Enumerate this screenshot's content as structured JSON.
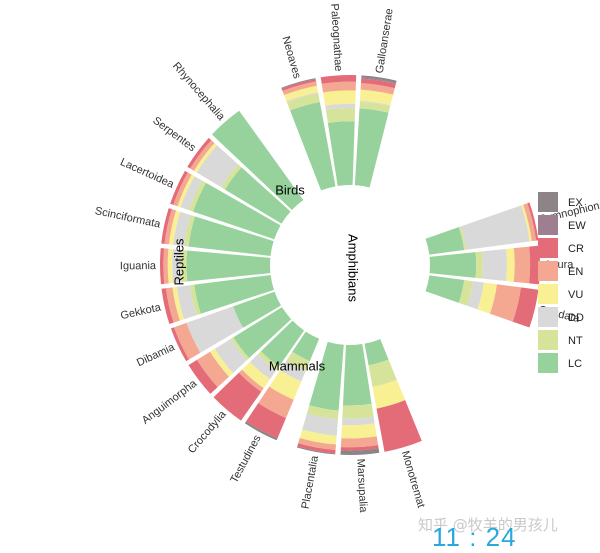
{
  "chart_data": {
    "type": "bar",
    "layout": "circular-stacked-percent",
    "categories_order": [
      "LC",
      "NT",
      "DD",
      "VU",
      "EN",
      "CR",
      "EW",
      "EX"
    ],
    "colors": {
      "EX": "#8c8486",
      "EW": "#9e7f92",
      "CR": "#e46b78",
      "EN": "#f4a791",
      "VU": "#f8f092",
      "DD": "#d9d9d9",
      "NT": "#d6e49b",
      "LC": "#97d29c"
    },
    "legend": {
      "position": "right",
      "entries": [
        "EX",
        "EW",
        "CR",
        "EN",
        "VU",
        "DD",
        "NT",
        "LC"
      ]
    },
    "groups": [
      {
        "name": "Reptiles",
        "orders": [
          {
            "name": "Testudines",
            "values": {
              "LC": 0.22,
              "NT": 0.1,
              "DD": 0.1,
              "VU": 0.18,
              "EN": 0.18,
              "CR": 0.2,
              "EW": 0.0,
              "EX": 0.02
            }
          },
          {
            "name": "Crocodylia",
            "values": {
              "LC": 0.4,
              "NT": 0.04,
              "DD": 0.1,
              "VU": 0.1,
              "EN": 0.04,
              "CR": 0.32,
              "EW": 0.0,
              "EX": 0.0
            }
          },
          {
            "name": "Anguimorpha",
            "values": {
              "LC": 0.52,
              "NT": 0.03,
              "DD": 0.17,
              "VU": 0.05,
              "EN": 0.14,
              "CR": 0.09,
              "EW": 0.0,
              "EX": 0.0
            }
          },
          {
            "name": "Dibamia",
            "values": {
              "LC": 0.4,
              "NT": 0.0,
              "DD": 0.45,
              "VU": 0.0,
              "EN": 0.12,
              "CR": 0.03,
              "EW": 0.0,
              "EX": 0.0
            }
          },
          {
            "name": "Gekkota",
            "values": {
              "LC": 0.7,
              "NT": 0.04,
              "DD": 0.12,
              "VU": 0.04,
              "EN": 0.06,
              "CR": 0.04,
              "EW": 0.0,
              "EX": 0.0
            }
          },
          {
            "name": "Iguania",
            "values": {
              "LC": 0.76,
              "NT": 0.05,
              "DD": 0.08,
              "VU": 0.04,
              "EN": 0.04,
              "CR": 0.03,
              "EW": 0.0,
              "EX": 0.0
            }
          },
          {
            "name": "Scinciformata",
            "values": {
              "LC": 0.75,
              "NT": 0.04,
              "DD": 0.1,
              "VU": 0.04,
              "EN": 0.04,
              "CR": 0.03,
              "EW": 0.0,
              "EX": 0.0
            }
          },
          {
            "name": "Lacertoidea",
            "values": {
              "LC": 0.78,
              "NT": 0.04,
              "DD": 0.08,
              "VU": 0.03,
              "EN": 0.04,
              "CR": 0.03,
              "EW": 0.0,
              "EX": 0.0
            }
          },
          {
            "name": "Serpentes",
            "values": {
              "LC": 0.6,
              "NT": 0.04,
              "DD": 0.26,
              "VU": 0.03,
              "EN": 0.04,
              "CR": 0.03,
              "EW": 0.0,
              "EX": 0.0
            }
          },
          {
            "name": "Rhynocephalia",
            "values": {
              "LC": 1.0,
              "NT": 0.0,
              "DD": 0.0,
              "VU": 0.0,
              "EN": 0.0,
              "CR": 0.0,
              "EW": 0.0,
              "EX": 0.0
            }
          }
        ]
      },
      {
        "name": "Birds",
        "orders": [
          {
            "name": "Neoaves",
            "values": {
              "LC": 0.78,
              "NT": 0.08,
              "DD": 0.01,
              "VU": 0.06,
              "EN": 0.04,
              "CR": 0.02,
              "EW": 0.0,
              "EX": 0.01
            }
          },
          {
            "name": "Paleognathae",
            "values": {
              "LC": 0.58,
              "NT": 0.12,
              "DD": 0.04,
              "VU": 0.12,
              "EN": 0.08,
              "CR": 0.06,
              "EW": 0.0,
              "EX": 0.0
            }
          },
          {
            "name": "Galloanserae",
            "values": {
              "LC": 0.7,
              "NT": 0.06,
              "DD": 0.01,
              "VU": 0.1,
              "EN": 0.06,
              "CR": 0.04,
              "EW": 0.01,
              "EX": 0.02
            }
          }
        ]
      },
      {
        "name": "Amphibians",
        "orders": [
          {
            "name": "Gymnophiona",
            "values": {
              "LC": 0.32,
              "NT": 0.02,
              "DD": 0.58,
              "VU": 0.02,
              "EN": 0.04,
              "CR": 0.02,
              "EW": 0.0,
              "EX": 0.0
            }
          },
          {
            "name": "Anura",
            "values": {
              "LC": 0.42,
              "NT": 0.06,
              "DD": 0.22,
              "VU": 0.07,
              "EN": 0.14,
              "CR": 0.09,
              "EW": 0.0,
              "EX": 0.0
            }
          },
          {
            "name": "Caudata",
            "values": {
              "LC": 0.32,
              "NT": 0.08,
              "DD": 0.1,
              "VU": 0.12,
              "EN": 0.22,
              "CR": 0.16,
              "EW": 0.0,
              "EX": 0.0
            }
          }
        ]
      },
      {
        "name": "Mammals",
        "orders": [
          {
            "name": "Monotremat",
            "values": {
              "LC": 0.2,
              "NT": 0.2,
              "DD": 0.0,
              "VU": 0.2,
              "EN": 0.0,
              "CR": 0.4,
              "EW": 0.0,
              "EX": 0.0
            }
          },
          {
            "name": "Marsupalia",
            "values": {
              "LC": 0.55,
              "NT": 0.12,
              "DD": 0.06,
              "VU": 0.12,
              "EN": 0.08,
              "CR": 0.03,
              "EW": 0.0,
              "EX": 0.04
            }
          },
          {
            "name": "Placentalia",
            "values": {
              "LC": 0.6,
              "NT": 0.08,
              "DD": 0.15,
              "VU": 0.08,
              "EN": 0.05,
              "CR": 0.03,
              "EW": 0.0,
              "EX": 0.01
            }
          }
        ]
      }
    ]
  },
  "watermark": "知乎 @牧羊的男孩儿",
  "timestamp": "11 : 24"
}
